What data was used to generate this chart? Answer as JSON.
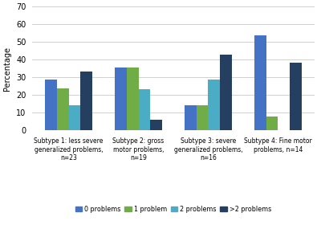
{
  "categories": [
    "Subtype 1: less severe\ngeneralized problems,\nn=23",
    "Subtype 2: gross\nmotor problems,\nn=19",
    "Subtype 3: severe\ngeneralized problems,\nn=16",
    "Subtype 4: Fine motor\nproblems, n=14"
  ],
  "series": {
    "0 problems": [
      29,
      35.5,
      14.5,
      54
    ],
    "1 problem": [
      24,
      35.5,
      14.5,
      8
    ],
    "2 problems": [
      14.5,
      23.5,
      29,
      0
    ],
    ">2 problems": [
      33.5,
      6,
      43,
      38.5
    ]
  },
  "colors": {
    "0 problems": "#4472C4",
    "1 problem": "#70AD47",
    "2 problems": "#4BACC6",
    ">2 problems": "#243F60"
  },
  "ylabel": "Percentage",
  "ylim": [
    0,
    70
  ],
  "yticks": [
    0,
    10,
    20,
    30,
    40,
    50,
    60,
    70
  ],
  "legend_labels": [
    "0 problems",
    "1 problem",
    "2 problems",
    ">2 problems"
  ],
  "background_color": "#ffffff",
  "grid_color": "#d0d0d0"
}
